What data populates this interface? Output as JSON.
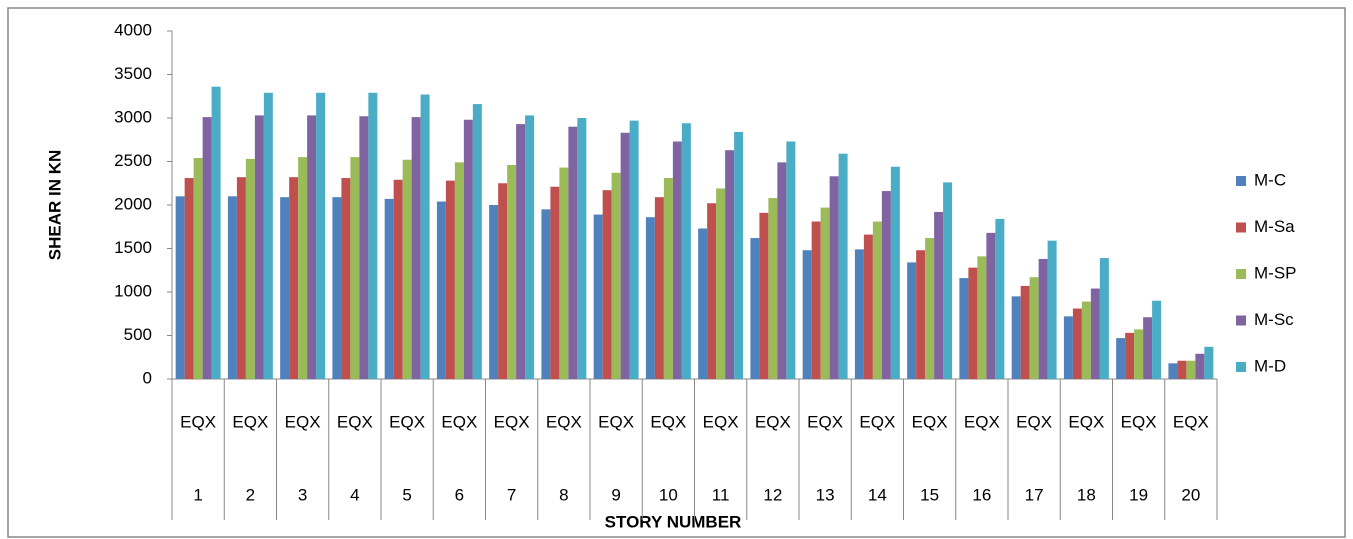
{
  "chart_data": {
    "type": "bar",
    "x_label": "STORY NUMBER",
    "y_label": "SHEAR IN KN",
    "subcategories": [
      "EQX",
      "EQX",
      "EQX",
      "EQX",
      "EQX",
      "EQX",
      "EQX",
      "EQX",
      "EQX",
      "EQX",
      "EQX",
      "EQX",
      "EQX",
      "EQX",
      "EQX",
      "EQX",
      "EQX",
      "EQX",
      "EQX",
      "EQX"
    ],
    "categories": [
      "1",
      "2",
      "3",
      "4",
      "5",
      "6",
      "7",
      "8",
      "9",
      "10",
      "11",
      "12",
      "13",
      "14",
      "15",
      "16",
      "17",
      "18",
      "19",
      "20"
    ],
    "series": [
      {
        "name": "M-C",
        "color": "#4f81bd",
        "values": [
          2100,
          2100,
          2090,
          2090,
          2070,
          2040,
          2000,
          1950,
          1890,
          1860,
          1730,
          1620,
          1480,
          1490,
          1340,
          1160,
          950,
          720,
          470,
          180
        ]
      },
      {
        "name": "M-Sa",
        "color": "#c0504d",
        "values": [
          2310,
          2320,
          2320,
          2310,
          2290,
          2280,
          2250,
          2210,
          2170,
          2090,
          2020,
          1910,
          1810,
          1660,
          1480,
          1280,
          1070,
          810,
          530,
          210
        ]
      },
      {
        "name": "M-SP",
        "color": "#9bbb59",
        "values": [
          2540,
          2530,
          2550,
          2550,
          2520,
          2490,
          2460,
          2430,
          2370,
          2310,
          2190,
          2080,
          1970,
          1810,
          1620,
          1410,
          1170,
          890,
          570,
          210
        ]
      },
      {
        "name": "M-Sc",
        "color": "#8064a2",
        "values": [
          3010,
          3030,
          3030,
          3020,
          3010,
          2980,
          2930,
          2900,
          2830,
          2730,
          2630,
          2490,
          2330,
          2160,
          1920,
          1680,
          1380,
          1040,
          710,
          290
        ]
      },
      {
        "name": "M-D",
        "color": "#4bacc6",
        "values": [
          3360,
          3290,
          3290,
          3290,
          3270,
          3160,
          3030,
          3000,
          2970,
          2940,
          2840,
          2730,
          2590,
          2440,
          2260,
          1840,
          1590,
          1390,
          900,
          370
        ]
      }
    ],
    "ylim": [
      0,
      4000
    ],
    "yticks": [
      0,
      500,
      1000,
      1500,
      2000,
      2500,
      3000,
      3500,
      4000
    ],
    "grid": false,
    "legend": "right"
  }
}
